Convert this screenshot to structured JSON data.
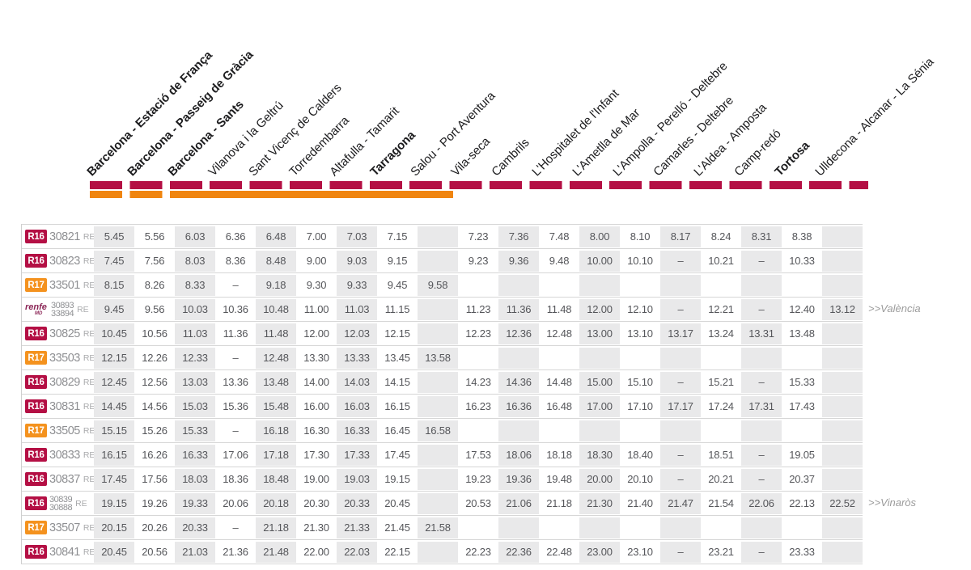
{
  "colors": {
    "r16_red": "#b40f44",
    "r17_orange": "#f0850f",
    "r17_badge_orange": "#f4921e",
    "renfe_purple": "#8b2556",
    "shade_gray": "#e9e9ea"
  },
  "header": {
    "stations": [
      {
        "label": "Barcelona - Estació de França",
        "bold": true
      },
      {
        "label": "Barcelona - Passeig de Gràcia",
        "bold": true
      },
      {
        "label": "Barcelona - Sants",
        "bold": true
      },
      {
        "label": "Vilanova i la Geltrú",
        "bold": false
      },
      {
        "label": "Sant Vicenç de Calders",
        "bold": false
      },
      {
        "label": "Torredembarra",
        "bold": false
      },
      {
        "label": "Altafulla - Tamarit",
        "bold": false
      },
      {
        "label": "Tarragona",
        "bold": true
      },
      {
        "label": "Salou - Port Aventura",
        "bold": false
      },
      {
        "label": "Vila-seca",
        "bold": false
      },
      {
        "label": "Cambrils",
        "bold": false
      },
      {
        "label": "L'Hospitalet de l'Infant",
        "bold": false
      },
      {
        "label": "L'Ametlla de Mar",
        "bold": false
      },
      {
        "label": "L'Ampolla - Perelló - Deltebre",
        "bold": false
      },
      {
        "label": "Camarles - Deltebre",
        "bold": false
      },
      {
        "label": "L'Aldea - Amposta",
        "bold": false
      },
      {
        "label": "Camp-redó",
        "bold": false
      },
      {
        "label": "Tortosa",
        "bold": true
      },
      {
        "label": "Ulldecona - Alcanar - La Sénia",
        "bold": false
      }
    ]
  },
  "renfe_logo": {
    "word": "renfe",
    "sub": "MD"
  },
  "table": {
    "rows": [
      {
        "badge_type": "R16",
        "badge_label": "R16",
        "train": [
          "30821"
        ],
        "service": "RE",
        "annotation": "",
        "times": [
          "5.45",
          "5.56",
          "6.03",
          "6.36",
          "6.48",
          "7.00",
          "7.03",
          "7.15",
          "",
          "7.23",
          "7.36",
          "7.48",
          "8.00",
          "8.10",
          "8.17",
          "8.24",
          "8.31",
          "8.38",
          ""
        ]
      },
      {
        "badge_type": "R16",
        "badge_label": "R16",
        "train": [
          "30823"
        ],
        "service": "RE",
        "annotation": "",
        "times": [
          "7.45",
          "7.56",
          "8.03",
          "8.36",
          "8.48",
          "9.00",
          "9.03",
          "9.15",
          "",
          "9.23",
          "9.36",
          "9.48",
          "10.00",
          "10.10",
          "–",
          "10.21",
          "–",
          "10.33",
          ""
        ]
      },
      {
        "badge_type": "R17",
        "badge_label": "R17",
        "train": [
          "33501"
        ],
        "service": "RE",
        "annotation": "",
        "times": [
          "8.15",
          "8.26",
          "8.33",
          "–",
          "9.18",
          "9.30",
          "9.33",
          "9.45",
          "9.58",
          "",
          "",
          "",
          "",
          "",
          "",
          "",
          "",
          "",
          ""
        ]
      },
      {
        "badge_type": "renfe-md",
        "badge_label": "",
        "train": [
          "30893",
          "33894"
        ],
        "service": "RE",
        "annotation": ">>València",
        "times": [
          "9.45",
          "9.56",
          "10.03",
          "10.36",
          "10.48",
          "11.00",
          "11.03",
          "11.15",
          "",
          "11.23",
          "11.36",
          "11.48",
          "12.00",
          "12.10",
          "–",
          "12.21",
          "–",
          "12.40",
          "13.12"
        ]
      },
      {
        "badge_type": "R16",
        "badge_label": "R16",
        "train": [
          "30825"
        ],
        "service": "RE",
        "annotation": "",
        "times": [
          "10.45",
          "10.56",
          "11.03",
          "11.36",
          "11.48",
          "12.00",
          "12.03",
          "12.15",
          "",
          "12.23",
          "12.36",
          "12.48",
          "13.00",
          "13.10",
          "13.17",
          "13.24",
          "13.31",
          "13.48",
          ""
        ]
      },
      {
        "badge_type": "R17",
        "badge_label": "R17",
        "train": [
          "33503"
        ],
        "service": "RE",
        "annotation": "",
        "times": [
          "12.15",
          "12.26",
          "12.33",
          "–",
          "12.48",
          "13.30",
          "13.33",
          "13.45",
          "13.58",
          "",
          "",
          "",
          "",
          "",
          "",
          "",
          "",
          "",
          ""
        ]
      },
      {
        "badge_type": "R16",
        "badge_label": "R16",
        "train": [
          "30829"
        ],
        "service": "RE",
        "annotation": "",
        "times": [
          "12.45",
          "12.56",
          "13.03",
          "13.36",
          "13.48",
          "14.00",
          "14.03",
          "14.15",
          "",
          "14.23",
          "14.36",
          "14.48",
          "15.00",
          "15.10",
          "–",
          "15.21",
          "–",
          "15.33",
          ""
        ]
      },
      {
        "badge_type": "R16",
        "badge_label": "R16",
        "train": [
          "30831"
        ],
        "service": "RE",
        "annotation": "",
        "times": [
          "14.45",
          "14.56",
          "15.03",
          "15.36",
          "15.48",
          "16.00",
          "16.03",
          "16.15",
          "",
          "16.23",
          "16.36",
          "16.48",
          "17.00",
          "17.10",
          "17.17",
          "17.24",
          "17.31",
          "17.43",
          ""
        ]
      },
      {
        "badge_type": "R17",
        "badge_label": "R17",
        "train": [
          "33505"
        ],
        "service": "RE",
        "annotation": "",
        "times": [
          "15.15",
          "15.26",
          "15.33",
          "–",
          "16.18",
          "16.30",
          "16.33",
          "16.45",
          "16.58",
          "",
          "",
          "",
          "",
          "",
          "",
          "",
          "",
          "",
          ""
        ]
      },
      {
        "badge_type": "R16",
        "badge_label": "R16",
        "train": [
          "30833"
        ],
        "service": "RE",
        "annotation": "",
        "times": [
          "16.15",
          "16.26",
          "16.33",
          "17.06",
          "17.18",
          "17.30",
          "17.33",
          "17.45",
          "",
          "17.53",
          "18.06",
          "18.18",
          "18.30",
          "18.40",
          "–",
          "18.51",
          "–",
          "19.05",
          ""
        ]
      },
      {
        "badge_type": "R16",
        "badge_label": "R16",
        "train": [
          "30837"
        ],
        "service": "RE",
        "annotation": "",
        "times": [
          "17.45",
          "17.56",
          "18.03",
          "18.36",
          "18.48",
          "19.00",
          "19.03",
          "19.15",
          "",
          "19.23",
          "19.36",
          "19.48",
          "20.00",
          "20.10",
          "–",
          "20.21",
          "–",
          "20.37",
          ""
        ]
      },
      {
        "badge_type": "R16",
        "badge_label": "R16",
        "train": [
          "30839",
          "30888"
        ],
        "service": "RE",
        "annotation": ">>Vinaròs",
        "times": [
          "19.15",
          "19.26",
          "19.33",
          "20.06",
          "20.18",
          "20.30",
          "20.33",
          "20.45",
          "",
          "20.53",
          "21.06",
          "21.18",
          "21.30",
          "21.40",
          "21.47",
          "21.54",
          "22.06",
          "22.13",
          "22.52"
        ]
      },
      {
        "badge_type": "R17",
        "badge_label": "R17",
        "train": [
          "33507"
        ],
        "service": "RE",
        "annotation": "",
        "times": [
          "20.15",
          "20.26",
          "20.33",
          "–",
          "21.18",
          "21.30",
          "21.33",
          "21.45",
          "21.58",
          "",
          "",
          "",
          "",
          "",
          "",
          "",
          "",
          "",
          ""
        ]
      },
      {
        "badge_type": "R16",
        "badge_label": "R16",
        "train": [
          "30841"
        ],
        "service": "RE",
        "annotation": "",
        "times": [
          "20.45",
          "20.56",
          "21.03",
          "21.36",
          "21.48",
          "22.00",
          "22.03",
          "22.15",
          "",
          "22.23",
          "22.36",
          "22.48",
          "23.00",
          "23.10",
          "–",
          "23.21",
          "–",
          "23.33",
          ""
        ]
      }
    ]
  }
}
